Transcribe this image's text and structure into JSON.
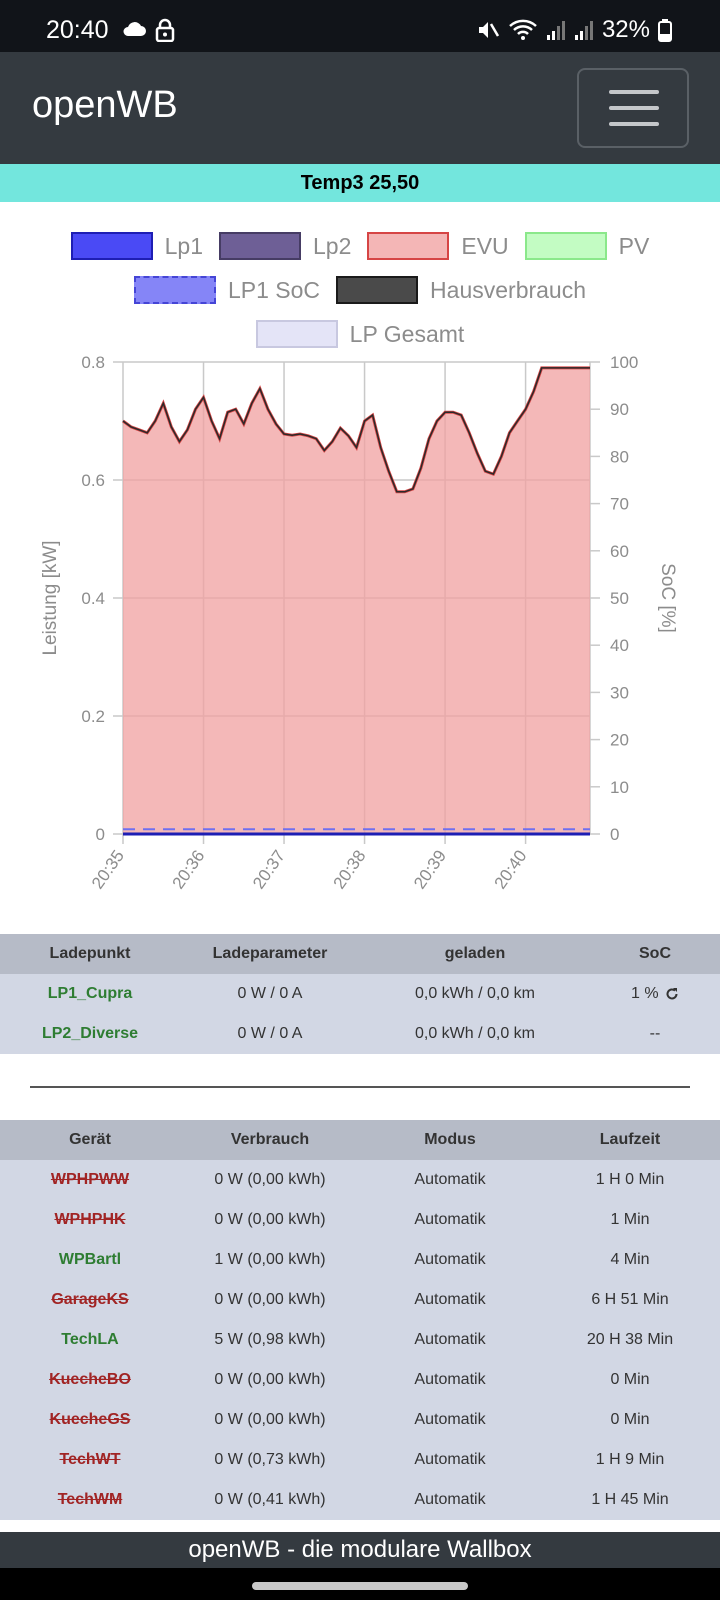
{
  "status_bar": {
    "time": "20:40",
    "battery": "32%",
    "icons": [
      "cloud-icon",
      "lock-icon",
      "mute-icon",
      "wifi-icon",
      "signal-icon",
      "signal-icon",
      "battery-icon"
    ]
  },
  "navbar": {
    "brand": "openWB",
    "menu_icon": "hamburger-icon"
  },
  "temp_banner": "Temp3 25,50",
  "legend": [
    {
      "label": "Lp1",
      "fill": "#4a4af5",
      "border": "#1e1eb4",
      "dashed": false
    },
    {
      "label": "Lp2",
      "fill": "#6e5f96",
      "border": "#463c64",
      "dashed": false
    },
    {
      "label": "EVU",
      "fill": "#f4b6b6",
      "border": "#d64545",
      "dashed": false
    },
    {
      "label": "PV",
      "fill": "#c3fcc3",
      "border": "#8be88b",
      "dashed": false
    },
    {
      "label": "LP1 SoC",
      "fill": "#8585f7",
      "border": "#4545d6",
      "dashed": true
    },
    {
      "label": "Hausverbrauch",
      "fill": "#4a4a4a",
      "border": "#1a1a1a",
      "dashed": false
    },
    {
      "label": "LP Gesamt",
      "fill": "#e4e4f7",
      "border": "#c8c8e0",
      "dashed": false
    }
  ],
  "chart_data": {
    "type": "area",
    "ylabel": "Leistung [kW]",
    "y2label": "SoC [%]",
    "ylim": [
      0,
      0.8
    ],
    "y_ticks": [
      "0",
      "0.2",
      "0.4",
      "0.6",
      "0.8"
    ],
    "y2lim": [
      0,
      100
    ],
    "y2_ticks": [
      "0",
      "10",
      "20",
      "30",
      "40",
      "50",
      "60",
      "70",
      "80",
      "90",
      "100"
    ],
    "x_ticks": [
      "20:35",
      "20:36",
      "20:37",
      "20:38",
      "20:39",
      "20:40"
    ],
    "x_range_minutes": [
      0,
      5.8
    ],
    "grid": true,
    "series": [
      {
        "name": "EVU",
        "x": [
          0,
          0.1,
          0.2,
          0.3,
          0.4,
          0.5,
          0.6,
          0.7,
          0.8,
          0.9,
          1.0,
          1.1,
          1.2,
          1.3,
          1.4,
          1.5,
          1.6,
          1.7,
          1.8,
          1.9,
          2.0,
          2.1,
          2.2,
          2.3,
          2.4,
          2.5,
          2.6,
          2.7,
          2.8,
          2.9,
          3.0,
          3.1,
          3.2,
          3.3,
          3.4,
          3.5,
          3.6,
          3.7,
          3.8,
          3.9,
          4.0,
          4.1,
          4.2,
          4.3,
          4.4,
          4.5,
          4.6,
          4.7,
          4.8,
          4.9,
          5.0,
          5.1,
          5.2,
          5.3,
          5.4,
          5.5,
          5.6,
          5.7,
          5.8
        ],
        "values": [
          0.7,
          0.69,
          0.685,
          0.68,
          0.7,
          0.73,
          0.69,
          0.665,
          0.685,
          0.72,
          0.74,
          0.7,
          0.67,
          0.715,
          0.72,
          0.695,
          0.73,
          0.755,
          0.72,
          0.695,
          0.678,
          0.676,
          0.678,
          0.675,
          0.67,
          0.65,
          0.665,
          0.688,
          0.675,
          0.655,
          0.7,
          0.71,
          0.655,
          0.615,
          0.58,
          0.58,
          0.585,
          0.62,
          0.67,
          0.7,
          0.715,
          0.715,
          0.71,
          0.68,
          0.645,
          0.615,
          0.61,
          0.64,
          0.68,
          0.7,
          0.72,
          0.75,
          0.79,
          0.79,
          0.79,
          0.79,
          0.79,
          0.79,
          0.79
        ]
      },
      {
        "name": "Lp1",
        "values": [
          0,
          0
        ]
      },
      {
        "name": "LP1 SoC",
        "unit": "%",
        "values": [
          1,
          1
        ]
      }
    ]
  },
  "lp_table": {
    "headers": [
      "Ladepunkt",
      "Ladeparameter",
      "geladen",
      "SoC"
    ],
    "rows": [
      {
        "name": "LP1_Cupra",
        "param": "0 W / 0 A",
        "geladen": "0,0 kWh / 0,0 km",
        "soc": "1 %",
        "soc_icon": "refresh-icon"
      },
      {
        "name": "LP2_Diverse",
        "param": "0 W / 0 A",
        "geladen": "0,0 kWh / 0,0 km",
        "soc": "--"
      }
    ]
  },
  "device_table": {
    "headers": [
      "Gerät",
      "Verbrauch",
      "Modus",
      "Laufzeit"
    ],
    "rows": [
      {
        "name": "WPHPWW",
        "status": "off",
        "verbrauch": "0 W (0,00 kWh)",
        "modus": "Automatik",
        "laufzeit": "1 H 0 Min"
      },
      {
        "name": "WPHPHK",
        "status": "off",
        "verbrauch": "0 W (0,00 kWh)",
        "modus": "Automatik",
        "laufzeit": "1 Min"
      },
      {
        "name": "WPBartl",
        "status": "on",
        "verbrauch": "1 W (0,00 kWh)",
        "modus": "Automatik",
        "laufzeit": "4 Min"
      },
      {
        "name": "GarageKS",
        "status": "off",
        "verbrauch": "0 W (0,00 kWh)",
        "modus": "Automatik",
        "laufzeit": "6 H 51 Min"
      },
      {
        "name": "TechLA",
        "status": "on",
        "verbrauch": "5 W (0,98 kWh)",
        "modus": "Automatik",
        "laufzeit": "20 H 38 Min"
      },
      {
        "name": "KuecheBO",
        "status": "off",
        "verbrauch": "0 W (0,00 kWh)",
        "modus": "Automatik",
        "laufzeit": "0 Min"
      },
      {
        "name": "KuecheGS",
        "status": "off",
        "verbrauch": "0 W (0,00 kWh)",
        "modus": "Automatik",
        "laufzeit": "0 Min"
      },
      {
        "name": "TechWT",
        "status": "off",
        "verbrauch": "0 W (0,73 kWh)",
        "modus": "Automatik",
        "laufzeit": "1 H 9 Min"
      },
      {
        "name": "TechWM",
        "status": "off",
        "verbrauch": "0 W (0,41 kWh)",
        "modus": "Automatik",
        "laufzeit": "1 H 45 Min"
      }
    ]
  },
  "footer": "openWB - die modulare Wallbox"
}
